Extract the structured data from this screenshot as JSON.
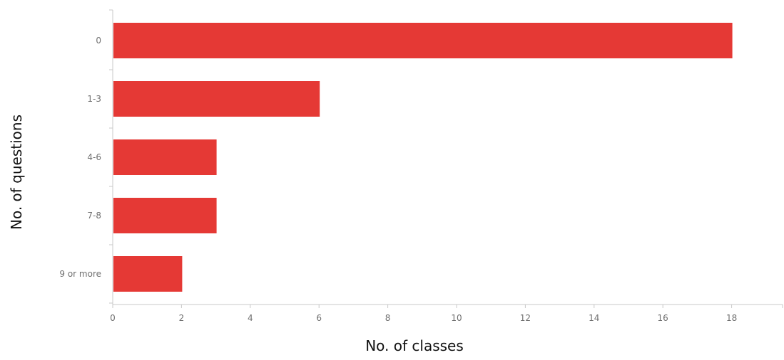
{
  "chart_data": {
    "type": "bar",
    "orientation": "horizontal",
    "categories": [
      "0",
      "1-3",
      "4-6",
      "7-8",
      "9 or more"
    ],
    "values": [
      18,
      6,
      3,
      3,
      2
    ],
    "xlabel": "No. of classes",
    "ylabel": "No. of questions",
    "xlim": [
      0,
      19.5
    ],
    "xticks": [
      0,
      2,
      4,
      6,
      8,
      10,
      12,
      14,
      16,
      18
    ],
    "grid": false,
    "legend": "none",
    "bar_color": "#e53935",
    "axis_color": "#c8c8c8"
  }
}
